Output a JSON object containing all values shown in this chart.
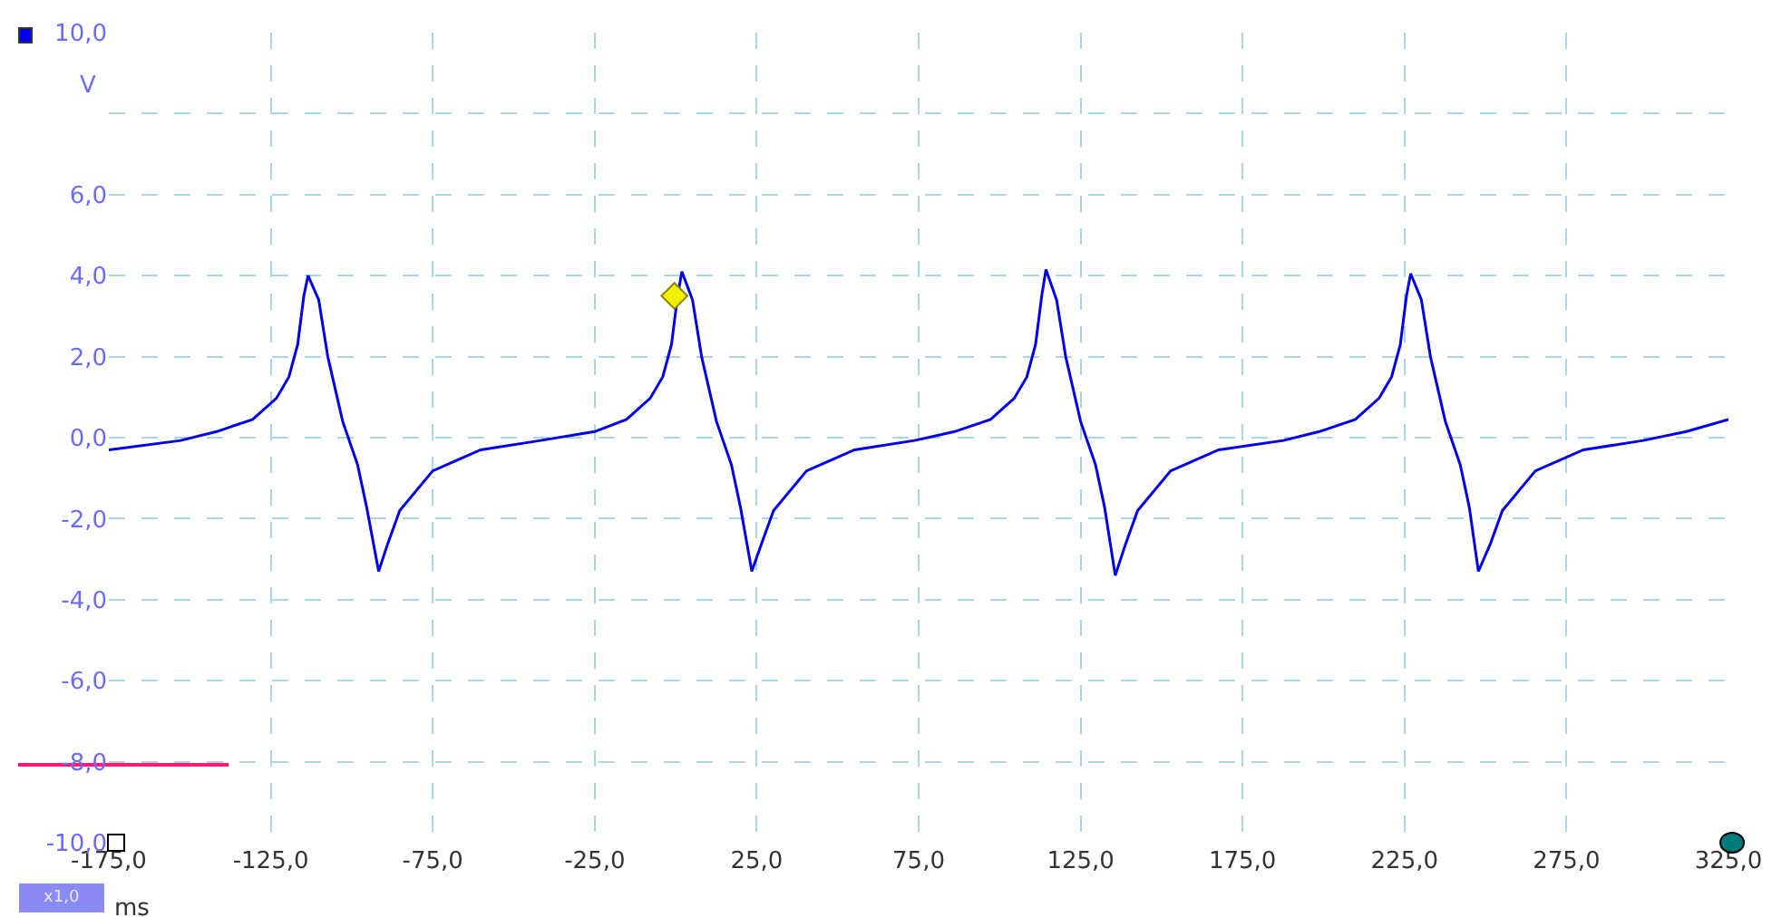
{
  "chart_data": {
    "type": "line",
    "xlabel": "ms",
    "ylabel": "V",
    "annotations": [
      "x1,0"
    ],
    "xlim": [
      -175,
      325
    ],
    "xticks": [
      {
        "value": -175,
        "label": "-175,0"
      },
      {
        "value": -125,
        "label": "-125,0"
      },
      {
        "value": -75,
        "label": "-75,0"
      },
      {
        "value": -25,
        "label": "-25,0"
      },
      {
        "value": 25,
        "label": "25,0"
      },
      {
        "value": 75,
        "label": "75,0"
      },
      {
        "value": 125,
        "label": "125,0"
      },
      {
        "value": 175,
        "label": "175,0"
      },
      {
        "value": 225,
        "label": "225,0"
      },
      {
        "value": 275,
        "label": "275,0"
      },
      {
        "value": 325,
        "label": "325,0"
      }
    ],
    "ylim": [
      -10,
      10
    ],
    "yticks": [
      {
        "value": -10,
        "label": "-10,0"
      },
      {
        "value": -8,
        "label": "-8,0"
      },
      {
        "value": -6,
        "label": "-6,0"
      },
      {
        "value": -4,
        "label": "-4,0"
      },
      {
        "value": -2,
        "label": "-2,0"
      },
      {
        "value": 0,
        "label": "0,0"
      },
      {
        "value": 2,
        "label": "2,0"
      },
      {
        "value": 4,
        "label": "4,0"
      },
      {
        "value": 6,
        "label": "6,0"
      },
      {
        "value": 8,
        "label": null
      },
      {
        "value": 10,
        "label": "10,0"
      }
    ],
    "grid": true,
    "line_style": "solid",
    "marker": "none",
    "series": [
      {
        "color": "#0000ee",
        "x": [
          -175,
          -152.8,
          -141.7,
          -130.6,
          -123.3,
          -119.4,
          -116.7,
          -114.8,
          -113.5,
          -110.2,
          -107.4,
          -102.8,
          -98.2,
          -95.4,
          -91.7,
          -88.9,
          -85.2,
          -75,
          -60.2,
          -41.7,
          -25,
          -15.2,
          -7.9,
          -4.0,
          -1.3,
          0.6,
          1.9,
          5.2,
          8.0,
          12.6,
          17.2,
          20.0,
          23.5,
          26.5,
          30.2,
          40.4,
          55.2,
          73.7,
          86.1,
          97.2,
          104.5,
          108.4,
          111.1,
          113.0,
          114.3,
          117.6,
          120.4,
          125.0,
          129.6,
          132.4,
          135.7,
          138.9,
          142.6,
          152.8,
          167.6,
          187.6,
          198.7,
          209.8,
          217.1,
          221.0,
          223.7,
          225.6,
          226.9,
          230.2,
          233.0,
          237.6,
          242.2,
          245.0,
          247.8,
          251.5,
          255.2,
          265.4,
          280.2,
          298.7,
          312,
          325
        ],
        "values": [
          -0.3,
          -0.07,
          0.15,
          0.45,
          0.97,
          1.5,
          2.3,
          3.5,
          4.0,
          3.4,
          2.0,
          0.4,
          -0.67,
          -1.72,
          -3.3,
          -2.62,
          -1.8,
          -0.82,
          -0.3,
          -0.07,
          0.15,
          0.45,
          0.97,
          1.5,
          2.3,
          3.5,
          4.1,
          3.4,
          2.0,
          0.4,
          -0.67,
          -1.72,
          -3.3,
          -2.62,
          -1.8,
          -0.82,
          -0.3,
          -0.07,
          0.15,
          0.45,
          0.97,
          1.5,
          2.3,
          3.5,
          4.15,
          3.4,
          2.0,
          0.4,
          -0.67,
          -1.72,
          -3.4,
          -2.62,
          -1.8,
          -0.82,
          -0.3,
          -0.07,
          0.15,
          0.45,
          0.97,
          1.5,
          2.3,
          3.5,
          4.05,
          3.4,
          2.0,
          0.4,
          -0.67,
          -1.72,
          -3.3,
          -2.62,
          -1.8,
          -0.82,
          -0.3,
          -0.07,
          0.15,
          0.45
        ]
      },
      {
        "type": "scatter",
        "marker": "diamond",
        "color": "#f0f000",
        "x": [
          -0.4
        ],
        "values": [
          3.5
        ]
      }
    ]
  }
}
